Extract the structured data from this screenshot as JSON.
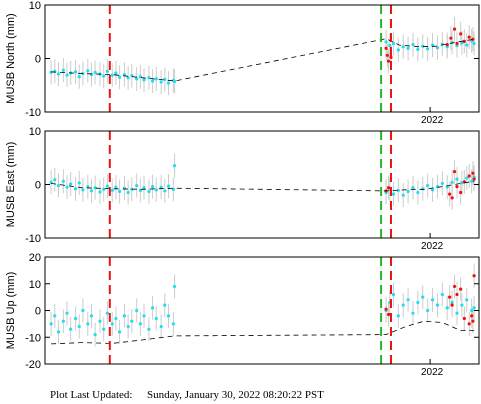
{
  "chart_data": [
    {
      "type": "scatter",
      "ylabel": "MUSB North (mm)",
      "ylim": [
        -10,
        10
      ],
      "yticks": [
        10,
        0,
        -10
      ],
      "year_label": "2022",
      "series": [
        {
          "points": [
            [
              0.0,
              -2.6
            ],
            [
              0.03,
              -2.4
            ],
            [
              0.06,
              -2.9
            ],
            [
              0.1,
              -2.2
            ],
            [
              0.13,
              -3.1
            ],
            [
              0.16,
              -2.7
            ],
            [
              0.2,
              -2.5
            ],
            [
              0.23,
              -3.4
            ],
            [
              0.26,
              -2.8
            ],
            [
              0.3,
              -2.3
            ],
            [
              0.33,
              -3.0
            ],
            [
              0.36,
              -2.6
            ],
            [
              0.4,
              -2.9
            ],
            [
              0.43,
              -3.3
            ],
            [
              0.46,
              -2.4
            ],
            [
              0.5,
              -3.1
            ],
            [
              0.53,
              -2.7
            ],
            [
              0.56,
              -3.5
            ],
            [
              0.6,
              -3.0
            ],
            [
              0.63,
              -3.6
            ],
            [
              0.66,
              -3.2
            ],
            [
              0.7,
              -3.8
            ],
            [
              0.73,
              -3.4
            ],
            [
              0.76,
              -4.0
            ],
            [
              0.8,
              -3.6
            ],
            [
              0.83,
              -4.2
            ],
            [
              0.86,
              -3.8
            ],
            [
              0.9,
              -4.4
            ],
            [
              0.93,
              -3.9
            ],
            [
              0.96,
              -4.6
            ],
            [
              1.0,
              -4.1
            ],
            [
              1.01,
              -4.3
            ],
            [
              2.74,
              3.1
            ],
            [
              2.77,
              2.4
            ],
            [
              2.8,
              2.8
            ],
            [
              2.84,
              1.6
            ],
            [
              2.88,
              2.2
            ],
            [
              2.92,
              1.9
            ],
            [
              2.96,
              2.6
            ],
            [
              3.0,
              1.7
            ],
            [
              3.04,
              2.3
            ],
            [
              3.08,
              1.8
            ],
            [
              3.12,
              2.5
            ],
            [
              3.16,
              2.0
            ],
            [
              3.2,
              2.7
            ],
            [
              3.24,
              2.2
            ],
            [
              3.28,
              3.0
            ],
            [
              3.32,
              2.4
            ],
            [
              3.36,
              2.9
            ],
            [
              3.4,
              2.5
            ],
            [
              3.44,
              3.3
            ],
            [
              3.46,
              2.8
            ]
          ]
        },
        {
          "points": [
            [
              2.74,
              1.9
            ],
            [
              2.75,
              0.6
            ],
            [
              2.76,
              -0.5
            ],
            [
              2.78,
              0.2
            ],
            [
              3.24,
              2.6
            ],
            [
              3.27,
              3.8
            ],
            [
              3.3,
              5.5
            ],
            [
              3.32,
              2.8
            ],
            [
              3.35,
              4.6
            ],
            [
              3.38,
              3.2
            ],
            [
              3.42,
              4.0
            ],
            [
              3.45,
              3.6
            ]
          ]
        }
      ],
      "trend": [
        [
          0.0,
          -2.5
        ],
        [
          0.25,
          -2.8
        ],
        [
          0.5,
          -3.0
        ],
        [
          0.75,
          -3.6
        ],
        [
          1.01,
          -4.2
        ],
        [
          2.74,
          3.7
        ],
        [
          2.85,
          2.5
        ],
        [
          3.0,
          2.2
        ],
        [
          3.15,
          2.3
        ],
        [
          3.3,
          3.0
        ],
        [
          3.46,
          3.6
        ]
      ]
    },
    {
      "type": "scatter",
      "ylabel": "MUSB East (mm)",
      "ylim": [
        -10,
        10
      ],
      "yticks": [
        10,
        0,
        -10
      ],
      "year_label": "2022",
      "series": [
        {
          "points": [
            [
              0.0,
              0.4
            ],
            [
              0.03,
              0.9
            ],
            [
              0.06,
              -0.2
            ],
            [
              0.1,
              0.6
            ],
            [
              0.13,
              -0.5
            ],
            [
              0.16,
              0.1
            ],
            [
              0.2,
              -0.8
            ],
            [
              0.23,
              0.3
            ],
            [
              0.26,
              -1.0
            ],
            [
              0.3,
              -0.4
            ],
            [
              0.33,
              -1.2
            ],
            [
              0.36,
              -0.6
            ],
            [
              0.4,
              -1.4
            ],
            [
              0.43,
              -0.9
            ],
            [
              0.46,
              -0.3
            ],
            [
              0.5,
              -1.1
            ],
            [
              0.53,
              -0.5
            ],
            [
              0.56,
              -1.3
            ],
            [
              0.6,
              -0.7
            ],
            [
              0.63,
              -1.5
            ],
            [
              0.66,
              -0.9
            ],
            [
              0.7,
              -0.2
            ],
            [
              0.73,
              -1.1
            ],
            [
              0.76,
              -0.6
            ],
            [
              0.8,
              -1.3
            ],
            [
              0.83,
              -0.4
            ],
            [
              0.86,
              -1.0
            ],
            [
              0.9,
              -0.5
            ],
            [
              0.93,
              -1.2
            ],
            [
              0.96,
              -0.3
            ],
            [
              1.0,
              -0.9
            ],
            [
              1.01,
              3.5
            ],
            [
              2.74,
              -1.5
            ],
            [
              2.77,
              -0.9
            ],
            [
              2.8,
              -1.8
            ],
            [
              2.84,
              -1.1
            ],
            [
              2.88,
              -2.0
            ],
            [
              2.92,
              -1.3
            ],
            [
              2.96,
              -0.6
            ],
            [
              3.0,
              -1.5
            ],
            [
              3.04,
              -0.8
            ],
            [
              3.08,
              -0.2
            ],
            [
              3.12,
              -1.0
            ],
            [
              3.16,
              -0.4
            ],
            [
              3.2,
              0.2
            ],
            [
              3.24,
              -0.5
            ],
            [
              3.28,
              0.4
            ],
            [
              3.32,
              1.0
            ],
            [
              3.36,
              0.3
            ],
            [
              3.4,
              1.2
            ],
            [
              3.44,
              0.6
            ],
            [
              3.46,
              1.4
            ]
          ]
        },
        {
          "points": [
            [
              2.74,
              -1.2
            ],
            [
              2.76,
              -0.6
            ],
            [
              3.26,
              -1.8
            ],
            [
              3.28,
              -2.5
            ],
            [
              3.3,
              2.4
            ],
            [
              3.32,
              -0.4
            ],
            [
              3.35,
              -1.5
            ],
            [
              3.38,
              0.5
            ],
            [
              3.42,
              1.6
            ],
            [
              3.45,
              2.1
            ],
            [
              3.46,
              1.0
            ]
          ]
        }
      ],
      "trend": [
        [
          0.0,
          0.2
        ],
        [
          0.25,
          -0.6
        ],
        [
          0.5,
          -0.8
        ],
        [
          0.75,
          -0.9
        ],
        [
          1.01,
          -0.7
        ],
        [
          2.74,
          -1.2
        ],
        [
          2.9,
          -1.0
        ],
        [
          3.05,
          -0.9
        ],
        [
          3.2,
          -0.4
        ],
        [
          3.35,
          0.2
        ],
        [
          3.46,
          0.6
        ]
      ]
    },
    {
      "type": "scatter",
      "ylabel": "MUSB Up (mm)",
      "ylim": [
        -20,
        20
      ],
      "yticks": [
        20,
        10,
        0,
        -10,
        -20
      ],
      "year_label": "2022",
      "series": [
        {
          "points": [
            [
              0.0,
              -5
            ],
            [
              0.03,
              -2
            ],
            [
              0.06,
              -8
            ],
            [
              0.1,
              -4
            ],
            [
              0.13,
              -1
            ],
            [
              0.16,
              -7
            ],
            [
              0.2,
              -3
            ],
            [
              0.23,
              -6
            ],
            [
              0.26,
              0
            ],
            [
              0.3,
              -5
            ],
            [
              0.33,
              -2
            ],
            [
              0.36,
              -9
            ],
            [
              0.4,
              -4
            ],
            [
              0.43,
              -7
            ],
            [
              0.46,
              -1
            ],
            [
              0.5,
              -5
            ],
            [
              0.53,
              -3
            ],
            [
              0.56,
              -8
            ],
            [
              0.6,
              -2
            ],
            [
              0.63,
              -6
            ],
            [
              0.66,
              -4
            ],
            [
              0.7,
              0
            ],
            [
              0.73,
              -5
            ],
            [
              0.76,
              -2
            ],
            [
              0.8,
              -7
            ],
            [
              0.83,
              1
            ],
            [
              0.86,
              -3
            ],
            [
              0.9,
              -6
            ],
            [
              0.93,
              2
            ],
            [
              0.96,
              -2
            ],
            [
              1.0,
              -5
            ],
            [
              1.01,
              9
            ],
            [
              2.74,
              0
            ],
            [
              2.77,
              3
            ],
            [
              2.8,
              6
            ],
            [
              2.84,
              -2
            ],
            [
              2.88,
              2
            ],
            [
              2.92,
              4
            ],
            [
              2.96,
              -1
            ],
            [
              3.0,
              3
            ],
            [
              3.04,
              5
            ],
            [
              3.08,
              0
            ],
            [
              3.12,
              4
            ],
            [
              3.16,
              2
            ],
            [
              3.2,
              6
            ],
            [
              3.24,
              1
            ],
            [
              3.28,
              3
            ],
            [
              3.32,
              -1
            ],
            [
              3.36,
              2
            ],
            [
              3.4,
              4
            ],
            [
              3.44,
              0
            ],
            [
              3.46,
              1
            ]
          ]
        },
        {
          "points": [
            [
              2.74,
              0.5
            ],
            [
              2.76,
              -1.5
            ],
            [
              3.26,
              5
            ],
            [
              3.28,
              2
            ],
            [
              3.3,
              9
            ],
            [
              3.32,
              6
            ],
            [
              3.35,
              8
            ],
            [
              3.38,
              -3
            ],
            [
              3.42,
              -5
            ],
            [
              3.44,
              -2
            ],
            [
              3.45,
              -4
            ],
            [
              3.46,
              13
            ]
          ]
        }
      ],
      "trend": [
        [
          0.0,
          -12.5
        ],
        [
          0.25,
          -12
        ],
        [
          0.5,
          -12.3
        ],
        [
          0.75,
          -11
        ],
        [
          1.01,
          -9.5
        ],
        [
          2.74,
          -9
        ],
        [
          2.9,
          -6
        ],
        [
          3.05,
          -4
        ],
        [
          3.2,
          -4.5
        ],
        [
          3.35,
          -7.5
        ],
        [
          3.46,
          -7.5
        ]
      ]
    }
  ],
  "markers": {
    "green_lines": [
      2.74
    ],
    "red_lines": [
      0.48,
      2.78
    ],
    "colors": {
      "primary": "#22ddee",
      "secondary": "#ee1111",
      "green": "#22bb22",
      "errorbar": "#cccccc",
      "trend": "#000000"
    }
  },
  "x_range": [
    -0.05,
    3.5
  ],
  "year_tick": 3.1,
  "footer": {
    "label": "Plot Last Updated:",
    "value": "Sunday, January 30, 2022 08:20:22 PST"
  }
}
